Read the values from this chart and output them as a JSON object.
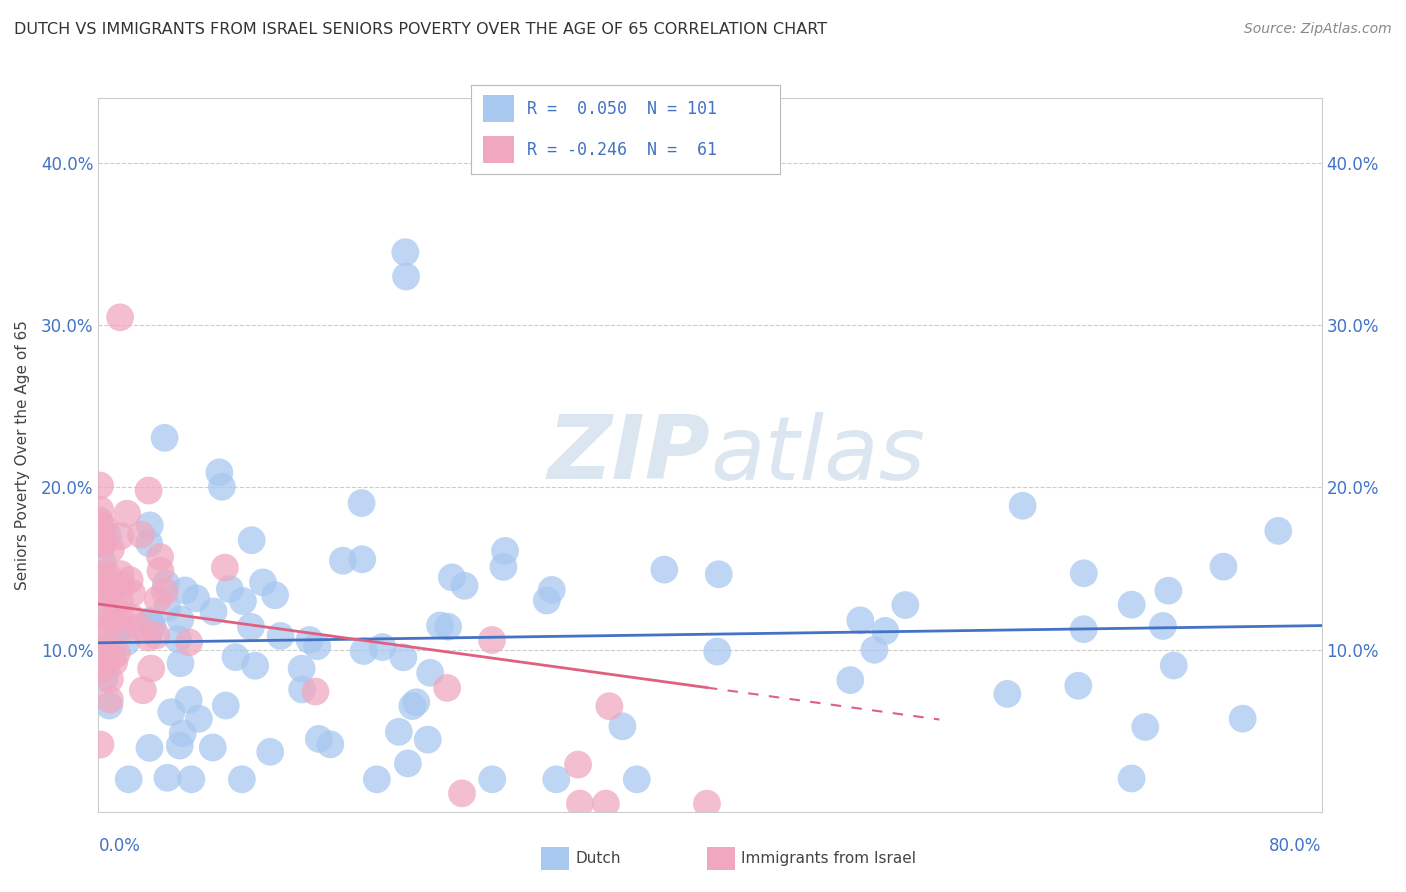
{
  "title": "DUTCH VS IMMIGRANTS FROM ISRAEL SENIORS POVERTY OVER THE AGE OF 65 CORRELATION CHART",
  "source": "Source: ZipAtlas.com",
  "ylabel": "Seniors Poverty Over the Age of 65",
  "ytick_vals": [
    0.0,
    0.1,
    0.2,
    0.3,
    0.4
  ],
  "ytick_labels": [
    "",
    "10.0%",
    "20.0%",
    "30.0%",
    "40.0%"
  ],
  "xlim": [
    0.0,
    0.8
  ],
  "ylim": [
    0.0,
    0.44
  ],
  "legend_dutch_R": "0.050",
  "legend_dutch_N": "101",
  "legend_israel_R": "-0.246",
  "legend_israel_N": "61",
  "dutch_color": "#a8c8f0",
  "israel_color": "#f0a8c0",
  "dutch_line_color": "#4472c4",
  "israel_line_color": "#e06080",
  "background_color": "#ffffff",
  "grid_color": "#cccccc",
  "watermark_color": "#dce6f0",
  "title_color": "#333333",
  "source_color": "#888888",
  "axis_color": "#4472c4",
  "label_color": "#444444"
}
